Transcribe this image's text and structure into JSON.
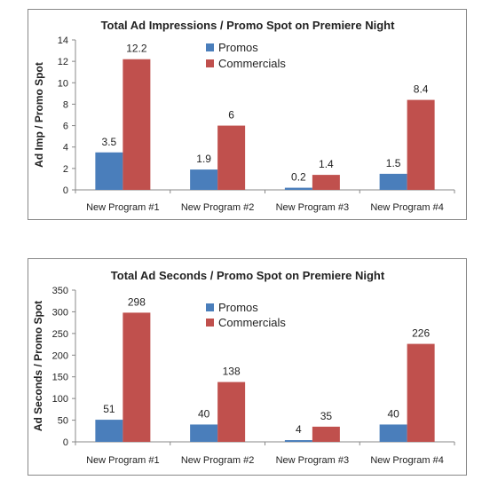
{
  "chart_data": [
    {
      "type": "bar",
      "title": "Total Ad Impressions / Promo Spot on Premiere Night",
      "xlabel": "",
      "ylabel": "Ad Imp / Promo Spot",
      "categories": [
        "New Program #1",
        "New Program #2",
        "New Program #3",
        "New Program #4"
      ],
      "series": [
        {
          "name": "Promos",
          "values": [
            3.5,
            1.9,
            0.2,
            1.5
          ],
          "labels": [
            "3.5",
            "1.9",
            "0.2",
            "1.5"
          ],
          "color": "#4a7ebb"
        },
        {
          "name": "Commercials",
          "values": [
            12.2,
            6,
            1.4,
            8.4
          ],
          "labels": [
            "12.2",
            "6",
            "1.4",
            "8.4"
          ],
          "color": "#c0504d"
        }
      ],
      "ylim": [
        0,
        14
      ],
      "yticks": [
        0,
        2,
        4,
        6,
        8,
        10,
        12,
        14
      ],
      "legend": "top-center",
      "grid": false
    },
    {
      "type": "bar",
      "title": "Total Ad Seconds / Promo Spot on Premiere Night",
      "xlabel": "",
      "ylabel": "Ad Seconds / Promo Spot",
      "categories": [
        "New Program #1",
        "New Program #2",
        "New Program #3",
        "New Program #4"
      ],
      "series": [
        {
          "name": "Promos",
          "values": [
            51,
            40,
            4,
            40
          ],
          "labels": [
            "51",
            "40",
            "4",
            "40"
          ],
          "color": "#4a7ebb"
        },
        {
          "name": "Commercials",
          "values": [
            298,
            138,
            35,
            226
          ],
          "labels": [
            "298",
            "138",
            "35",
            "226"
          ],
          "color": "#c0504d"
        }
      ],
      "ylim": [
        0,
        350
      ],
      "yticks": [
        0,
        50,
        100,
        150,
        200,
        250,
        300,
        350
      ],
      "legend": "top-center",
      "grid": false
    }
  ]
}
